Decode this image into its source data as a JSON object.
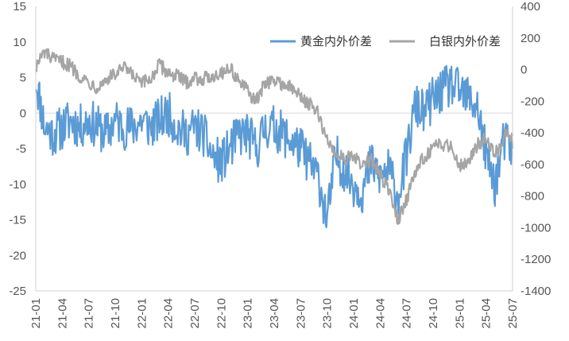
{
  "chart_data": {
    "type": "line",
    "title": "",
    "xlabel": "",
    "ylabel": "",
    "y2label": "",
    "legend_position": "top-right",
    "grid": false,
    "x_tick_labels": [
      "21-01",
      "21-04",
      "21-07",
      "21-10",
      "22-01",
      "22-04",
      "22-07",
      "22-10",
      "23-01",
      "23-04",
      "23-07",
      "23-10",
      "24-01",
      "24-04",
      "24-07",
      "24-10",
      "25-01",
      "25-04",
      "25-07"
    ],
    "y_left": {
      "min": -25,
      "max": 15,
      "ticks": [
        15,
        10,
        5,
        0,
        -5,
        -10,
        -15,
        -20,
        -25
      ]
    },
    "y_right": {
      "min": -1400,
      "max": 400,
      "ticks": [
        400,
        200,
        0,
        -200,
        -400,
        -600,
        -800,
        -1000,
        -1200,
        -1400
      ]
    },
    "series": [
      {
        "name": "黄金内外价差",
        "axis": "left",
        "color": "#5b9bd5",
        "points": [
          [
            "21-01",
            5
          ],
          [
            "21-02",
            -2
          ],
          [
            "21-03",
            -3
          ],
          [
            "21-04",
            -2
          ],
          [
            "21-05",
            -1
          ],
          [
            "21-06",
            -2
          ],
          [
            "21-07",
            -1
          ],
          [
            "21-08",
            -2
          ],
          [
            "21-09",
            -3
          ],
          [
            "21-10",
            -1
          ],
          [
            "21-11",
            -2
          ],
          [
            "21-12",
            -2
          ],
          [
            "22-01",
            -1
          ],
          [
            "22-02",
            -2
          ],
          [
            "22-03",
            -1
          ],
          [
            "22-04",
            0
          ],
          [
            "22-05",
            -2
          ],
          [
            "22-06",
            -3
          ],
          [
            "22-07",
            -2
          ],
          [
            "22-08",
            -3
          ],
          [
            "22-09",
            -6
          ],
          [
            "22-10",
            -7
          ],
          [
            "22-11",
            -5
          ],
          [
            "22-12",
            -3
          ],
          [
            "23-01",
            -3
          ],
          [
            "23-02",
            -5
          ],
          [
            "23-03",
            -2
          ],
          [
            "23-04",
            -2
          ],
          [
            "23-05",
            -3
          ],
          [
            "23-06",
            -4
          ],
          [
            "23-07",
            -5
          ],
          [
            "23-08",
            -7
          ],
          [
            "23-09",
            -9
          ],
          [
            "23-10",
            -15
          ],
          [
            "23-11",
            -6
          ],
          [
            "23-12",
            -8
          ],
          [
            "24-01",
            -10
          ],
          [
            "24-02",
            -11
          ],
          [
            "24-03",
            -7
          ],
          [
            "24-04",
            -9
          ],
          [
            "24-05",
            -8
          ],
          [
            "24-06",
            -12
          ],
          [
            "24-07",
            -6
          ],
          [
            "24-08",
            1
          ],
          [
            "24-09",
            0
          ],
          [
            "24-10",
            2
          ],
          [
            "24-11",
            3
          ],
          [
            "24-12",
            4
          ],
          [
            "25-01",
            3
          ],
          [
            "25-02",
            2
          ],
          [
            "25-03",
            1
          ],
          [
            "25-04",
            -6
          ],
          [
            "25-05",
            -10
          ],
          [
            "25-06",
            -4
          ],
          [
            "25-07",
            -5
          ]
        ]
      },
      {
        "name": "白银内外价差",
        "axis": "right",
        "color": "#a5a5a5",
        "points": [
          [
            "21-01",
            20
          ],
          [
            "21-02",
            110
          ],
          [
            "21-03",
            60
          ],
          [
            "21-04",
            50
          ],
          [
            "21-05",
            20
          ],
          [
            "21-06",
            -40
          ],
          [
            "21-07",
            -80
          ],
          [
            "21-08",
            -110
          ],
          [
            "21-09",
            -60
          ],
          [
            "21-10",
            -30
          ],
          [
            "21-11",
            10
          ],
          [
            "21-12",
            -40
          ],
          [
            "22-01",
            -90
          ],
          [
            "22-02",
            -60
          ],
          [
            "22-03",
            30
          ],
          [
            "22-04",
            -20
          ],
          [
            "22-05",
            -40
          ],
          [
            "22-06",
            -80
          ],
          [
            "22-07",
            -50
          ],
          [
            "22-08",
            -60
          ],
          [
            "22-09",
            -40
          ],
          [
            "22-10",
            -20
          ],
          [
            "22-11",
            10
          ],
          [
            "22-12",
            -70
          ],
          [
            "23-01",
            -140
          ],
          [
            "23-02",
            -200
          ],
          [
            "23-03",
            -80
          ],
          [
            "23-04",
            -70
          ],
          [
            "23-05",
            -90
          ],
          [
            "23-06",
            -120
          ],
          [
            "23-07",
            -170
          ],
          [
            "23-08",
            -220
          ],
          [
            "23-09",
            -280
          ],
          [
            "23-10",
            -450
          ],
          [
            "23-11",
            -530
          ],
          [
            "23-12",
            -560
          ],
          [
            "24-01",
            -560
          ],
          [
            "24-02",
            -600
          ],
          [
            "24-03",
            -580
          ],
          [
            "24-04",
            -660
          ],
          [
            "24-05",
            -770
          ],
          [
            "24-06",
            -950
          ],
          [
            "24-07",
            -820
          ],
          [
            "24-08",
            -650
          ],
          [
            "24-09",
            -550
          ],
          [
            "24-10",
            -500
          ],
          [
            "24-11",
            -470
          ],
          [
            "24-12",
            -480
          ],
          [
            "25-01",
            -600
          ],
          [
            "25-02",
            -580
          ],
          [
            "25-03",
            -480
          ],
          [
            "25-04",
            -420
          ],
          [
            "25-05",
            -540
          ],
          [
            "25-06",
            -420
          ],
          [
            "25-07",
            -420
          ]
        ]
      }
    ]
  }
}
